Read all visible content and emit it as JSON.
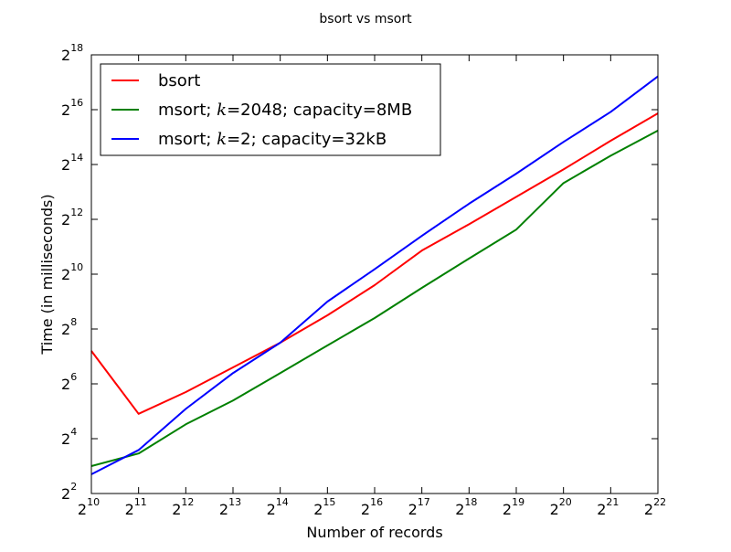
{
  "chart_data": {
    "type": "line",
    "title": "bsort vs msort",
    "xlabel": "Number of records",
    "ylabel": "Time (in milliseconds)",
    "x_scale": "log2",
    "y_scale": "log2",
    "xlim": [
      1024,
      4194304
    ],
    "ylim": [
      4,
      262144
    ],
    "x_ticks": [
      {
        "base": "2",
        "exp": "10"
      },
      {
        "base": "2",
        "exp": "11"
      },
      {
        "base": "2",
        "exp": "12"
      },
      {
        "base": "2",
        "exp": "13"
      },
      {
        "base": "2",
        "exp": "14"
      },
      {
        "base": "2",
        "exp": "15"
      },
      {
        "base": "2",
        "exp": "16"
      },
      {
        "base": "2",
        "exp": "17"
      },
      {
        "base": "2",
        "exp": "18"
      },
      {
        "base": "2",
        "exp": "19"
      },
      {
        "base": "2",
        "exp": "20"
      },
      {
        "base": "2",
        "exp": "21"
      },
      {
        "base": "2",
        "exp": "22"
      }
    ],
    "y_ticks": [
      {
        "base": "2",
        "exp": "2"
      },
      {
        "base": "2",
        "exp": "4"
      },
      {
        "base": "2",
        "exp": "6"
      },
      {
        "base": "2",
        "exp": "8"
      },
      {
        "base": "2",
        "exp": "10"
      },
      {
        "base": "2",
        "exp": "12"
      },
      {
        "base": "2",
        "exp": "14"
      },
      {
        "base": "2",
        "exp": "16"
      },
      {
        "base": "2",
        "exp": "18"
      }
    ],
    "grid": false,
    "legend_position": "top-left",
    "x": [
      1024,
      2048,
      4096,
      8192,
      16384,
      32768,
      65536,
      131072,
      262144,
      524288,
      1048576,
      2097152,
      4194304
    ],
    "series": [
      {
        "name": "bsort",
        "legend_parts": [
          {
            "text": "bsort",
            "italic": false
          }
        ],
        "color": "#ff0000",
        "values": [
          147,
          30,
          52,
          97,
          181,
          362,
          776,
          1861,
          3620,
          7240,
          14480,
          29860,
          59720
        ]
      },
      {
        "name": "msort; k=2048; capacity=8MB",
        "legend_parts": [
          {
            "text": "msort; ",
            "italic": false
          },
          {
            "text": "k",
            "italic": true
          },
          {
            "text": "=2048",
            "italic": false
          },
          {
            "text": "; capacity=8MB",
            "italic": false
          }
        ],
        "color": "#008000",
        "values": [
          8,
          11,
          23,
          42,
          84,
          169,
          338,
          724,
          1521,
          3162,
          10240,
          20480,
          38620
        ]
      },
      {
        "name": "msort; k=2; capacity=32kB",
        "legend_parts": [
          {
            "text": "msort; ",
            "italic": false
          },
          {
            "text": "k",
            "italic": true
          },
          {
            "text": "=2",
            "italic": false
          },
          {
            "text": "; capacity=32kB",
            "italic": false
          }
        ],
        "color": "#0000ff",
        "values": [
          6.5,
          12,
          34,
          84,
          181,
          512,
          1161,
          2702,
          6080,
          13000,
          28970,
          61940,
          152000
        ]
      }
    ]
  }
}
